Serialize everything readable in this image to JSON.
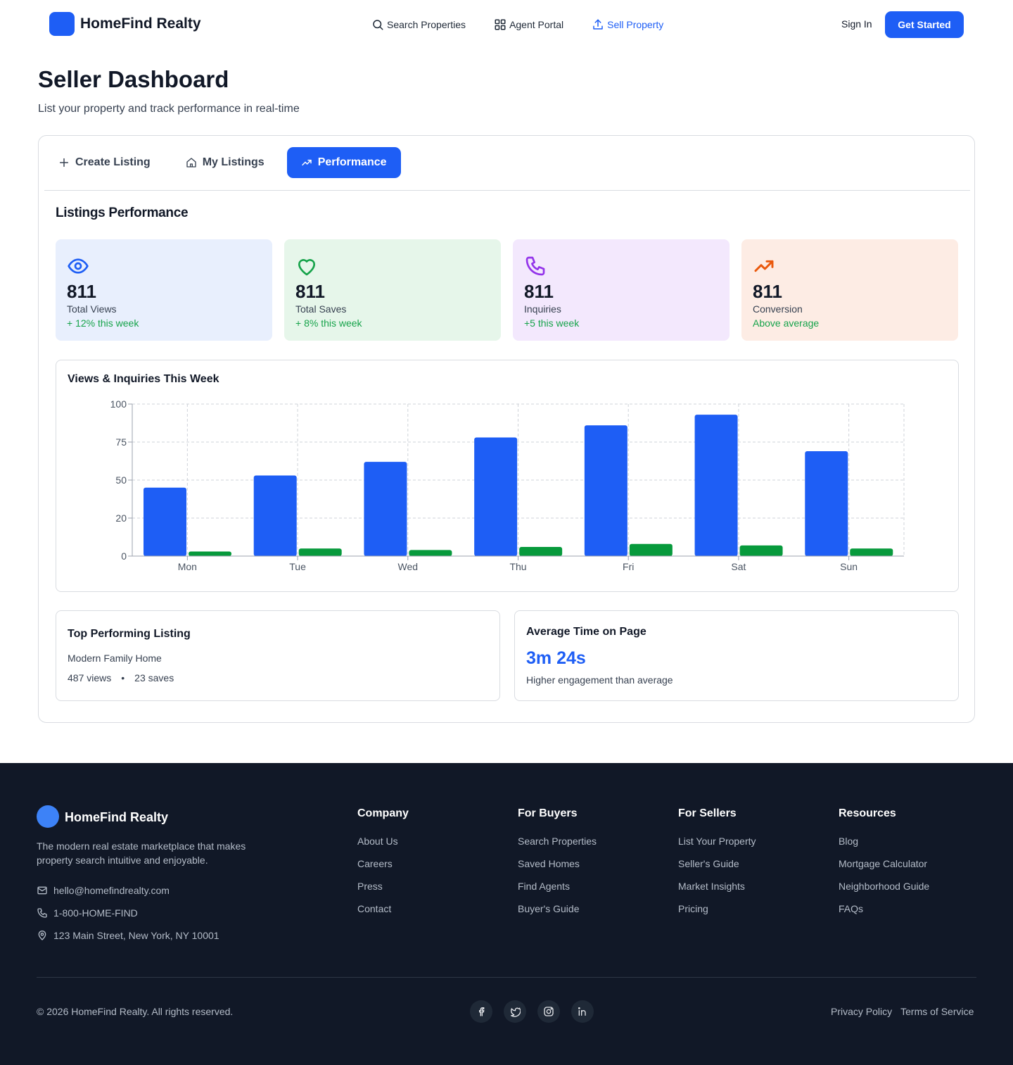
{
  "header": {
    "brand": "HomeFind Realty",
    "nav": [
      {
        "label": "Search Properties",
        "icon": "search-icon"
      },
      {
        "label": "Agent Portal",
        "icon": "grid-icon"
      },
      {
        "label": "Sell Property",
        "icon": "upload-icon",
        "active": true
      }
    ],
    "sign_in": "Sign In",
    "get_started": "Get Started"
  },
  "page": {
    "title": "Seller Dashboard",
    "subtitle": "List your property and track performance in real-time"
  },
  "tabs": [
    {
      "label": "Create Listing",
      "icon": "plus-icon"
    },
    {
      "label": "My Listings",
      "icon": "home-icon"
    },
    {
      "label": "Performance",
      "icon": "trending-up-icon",
      "active": true
    }
  ],
  "performance": {
    "title": "Listings Performance",
    "stats": [
      {
        "value": "811",
        "label": "Total Views",
        "change": "+ 12% this week",
        "icon": "eye-icon",
        "bg": "#e8effd",
        "icon_color": "#1e5ef5"
      },
      {
        "value": "811",
        "label": "Total Saves",
        "change": "+ 8% this week",
        "icon": "heart-icon",
        "bg": "#e6f6ea",
        "icon_color": "#16a34a"
      },
      {
        "value": "811",
        "label": "Inquiries",
        "change": "+5 this week",
        "icon": "phone-icon",
        "bg": "#f3e8fd",
        "icon_color": "#9333ea"
      },
      {
        "value": "811",
        "label": "Conversion",
        "change": "Above average",
        "icon": "trending-up-icon",
        "bg": "#fdece4",
        "icon_color": "#ea580c"
      }
    ],
    "top_listing": {
      "title": "Top Performing Listing",
      "name": "Modern Family Home",
      "views": "487 views",
      "bullet": "•",
      "saves": "23 saves"
    },
    "avg_time": {
      "title": "Average Time on Page",
      "value": "3m 24s",
      "note": "Higher engagement than average"
    }
  },
  "chart_data": {
    "type": "bar",
    "title": "Views & Inquiries This Week",
    "categories": [
      "Mon",
      "Tue",
      "Wed",
      "Thu",
      "Fri",
      "Sat",
      "Sun"
    ],
    "series": [
      {
        "name": "Views",
        "color": "#1e5ef5",
        "values": [
          45,
          53,
          62,
          78,
          86,
          93,
          69
        ]
      },
      {
        "name": "Inquiries",
        "color": "#079a3c",
        "values": [
          3,
          5,
          4,
          6,
          8,
          7,
          5
        ]
      }
    ],
    "y_ticks": [
      "0",
      "20",
      "50",
      "75",
      "100"
    ],
    "ylim": [
      0,
      100
    ],
    "grid": true
  },
  "footer": {
    "brand": "HomeFind Realty",
    "description": "The modern real estate marketplace that makes property search intuitive and enjoyable.",
    "email": "hello@homefindrealty.com",
    "phone": "1-800-HOME-FIND",
    "address": "123 Main Street, New York, NY 10001",
    "columns": [
      {
        "title": "Company",
        "links": [
          "About Us",
          "Careers",
          "Press",
          "Contact"
        ]
      },
      {
        "title": "For Buyers",
        "links": [
          "Search Properties",
          "Saved Homes",
          "Find Agents",
          "Buyer's Guide"
        ]
      },
      {
        "title": "For Sellers",
        "links": [
          "List Your Property",
          "Seller's Guide",
          "Market Insights",
          "Pricing"
        ]
      },
      {
        "title": "Resources",
        "links": [
          "Blog",
          "Mortgage Calculator",
          "Neighborhood Guide",
          "FAQs"
        ]
      }
    ],
    "copyright": "© 2026 HomeFind Realty. All rights reserved.",
    "socials": [
      "facebook-icon",
      "twitter-icon",
      "instagram-icon",
      "linkedin-icon"
    ],
    "privacy": "Privacy Policy",
    "terms": "Terms of Service"
  }
}
